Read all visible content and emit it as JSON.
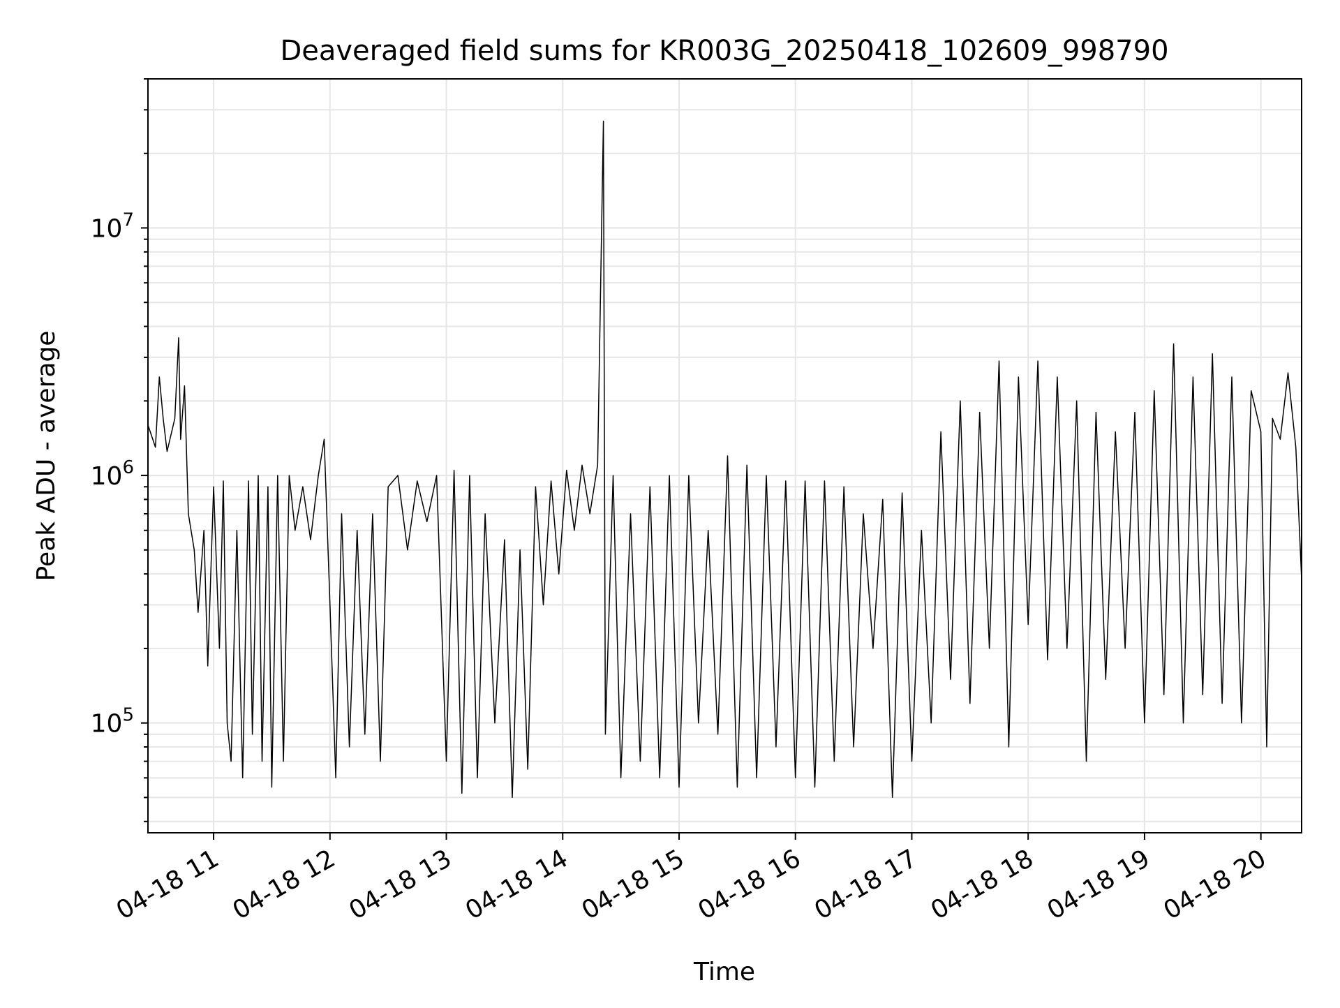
{
  "chart_data": {
    "type": "line",
    "title": "Deaveraged field sums for KR003G_20250418_102609_998790",
    "xlabel": "Time",
    "ylabel": "Peak ADU - average",
    "x_axis": {
      "kind": "time",
      "range": [
        "2025-04-18T10:26:09",
        "2025-04-18T20:21:00"
      ],
      "ticks": [
        "04-18 11",
        "04-18 12",
        "04-18 13",
        "04-18 14",
        "04-18 15",
        "04-18 16",
        "04-18 17",
        "04-18 18",
        "04-18 19",
        "04-18 20"
      ],
      "tick_rotation_deg": 30
    },
    "y_axis": {
      "scale": "log",
      "range": [
        36000,
        40000000
      ],
      "major_ticks": [
        100000,
        1000000,
        10000000
      ],
      "major_tick_labels": [
        {
          "base": "10",
          "exp": "5"
        },
        {
          "base": "10",
          "exp": "6"
        },
        {
          "base": "10",
          "exp": "7"
        }
      ]
    },
    "grid": true,
    "line_color": "#000000",
    "grid_color": "#e6e6e6",
    "series": [
      {
        "points": [
          [
            "2025-04-18T10:26:09",
            1600000
          ],
          [
            "2025-04-18T10:30",
            1300000
          ],
          [
            "2025-04-18T10:32",
            2500000
          ],
          [
            "2025-04-18T10:34",
            1700000
          ],
          [
            "2025-04-18T10:36",
            1250000
          ],
          [
            "2025-04-18T10:40",
            1700000
          ],
          [
            "2025-04-18T10:42",
            3600000
          ],
          [
            "2025-04-18T10:43",
            1400000
          ],
          [
            "2025-04-18T10:45",
            2300000
          ],
          [
            "2025-04-18T10:47",
            700000
          ],
          [
            "2025-04-18T10:50",
            500000
          ],
          [
            "2025-04-18T10:52",
            280000
          ],
          [
            "2025-04-18T10:55",
            600000
          ],
          [
            "2025-04-18T10:57",
            170000
          ],
          [
            "2025-04-18T11:00",
            900000
          ],
          [
            "2025-04-18T11:03",
            200000
          ],
          [
            "2025-04-18T11:05",
            950000
          ],
          [
            "2025-04-18T11:07",
            100000
          ],
          [
            "2025-04-18T11:09",
            70000
          ],
          [
            "2025-04-18T11:12",
            600000
          ],
          [
            "2025-04-18T11:15",
            60000
          ],
          [
            "2025-04-18T11:18",
            950000
          ],
          [
            "2025-04-18T11:20",
            90000
          ],
          [
            "2025-04-18T11:23",
            1000000
          ],
          [
            "2025-04-18T11:25",
            70000
          ],
          [
            "2025-04-18T11:28",
            900000
          ],
          [
            "2025-04-18T11:30",
            55000
          ],
          [
            "2025-04-18T11:33",
            1000000
          ],
          [
            "2025-04-18T11:36",
            70000
          ],
          [
            "2025-04-18T11:39",
            1000000
          ],
          [
            "2025-04-18T11:42",
            600000
          ],
          [
            "2025-04-18T11:46",
            900000
          ],
          [
            "2025-04-18T11:50",
            550000
          ],
          [
            "2025-04-18T11:54",
            1000000
          ],
          [
            "2025-04-18T11:57",
            1400000
          ],
          [
            "2025-04-18T12:00",
            300000
          ],
          [
            "2025-04-18T12:03",
            60000
          ],
          [
            "2025-04-18T12:06",
            700000
          ],
          [
            "2025-04-18T12:10",
            80000
          ],
          [
            "2025-04-18T12:14",
            600000
          ],
          [
            "2025-04-18T12:18",
            90000
          ],
          [
            "2025-04-18T12:22",
            700000
          ],
          [
            "2025-04-18T12:26",
            70000
          ],
          [
            "2025-04-18T12:30",
            900000
          ],
          [
            "2025-04-18T12:35",
            1000000
          ],
          [
            "2025-04-18T12:40",
            500000
          ],
          [
            "2025-04-18T12:45",
            950000
          ],
          [
            "2025-04-18T12:50",
            650000
          ],
          [
            "2025-04-18T12:55",
            1000000
          ],
          [
            "2025-04-18T13:00",
            70000
          ],
          [
            "2025-04-18T13:04",
            1050000
          ],
          [
            "2025-04-18T13:08",
            52000
          ],
          [
            "2025-04-18T13:12",
            1000000
          ],
          [
            "2025-04-18T13:16",
            60000
          ],
          [
            "2025-04-18T13:20",
            700000
          ],
          [
            "2025-04-18T13:25",
            100000
          ],
          [
            "2025-04-18T13:30",
            550000
          ],
          [
            "2025-04-18T13:34",
            50000
          ],
          [
            "2025-04-18T13:38",
            500000
          ],
          [
            "2025-04-18T13:42",
            65000
          ],
          [
            "2025-04-18T13:46",
            900000
          ],
          [
            "2025-04-18T13:50",
            300000
          ],
          [
            "2025-04-18T13:54",
            950000
          ],
          [
            "2025-04-18T13:58",
            400000
          ],
          [
            "2025-04-18T14:02",
            1050000
          ],
          [
            "2025-04-18T14:06",
            600000
          ],
          [
            "2025-04-18T14:10",
            1100000
          ],
          [
            "2025-04-18T14:14",
            700000
          ],
          [
            "2025-04-18T14:18",
            1100000
          ],
          [
            "2025-04-18T14:21",
            27000000
          ],
          [
            "2025-04-18T14:22",
            90000
          ],
          [
            "2025-04-18T14:26",
            1000000
          ],
          [
            "2025-04-18T14:30",
            60000
          ],
          [
            "2025-04-18T14:35",
            700000
          ],
          [
            "2025-04-18T14:40",
            70000
          ],
          [
            "2025-04-18T14:45",
            900000
          ],
          [
            "2025-04-18T14:50",
            60000
          ],
          [
            "2025-04-18T14:55",
            1000000
          ],
          [
            "2025-04-18T15:00",
            55000
          ],
          [
            "2025-04-18T15:05",
            1000000
          ],
          [
            "2025-04-18T15:10",
            100000
          ],
          [
            "2025-04-18T15:15",
            600000
          ],
          [
            "2025-04-18T15:20",
            90000
          ],
          [
            "2025-04-18T15:25",
            1200000
          ],
          [
            "2025-04-18T15:30",
            55000
          ],
          [
            "2025-04-18T15:35",
            1100000
          ],
          [
            "2025-04-18T15:40",
            60000
          ],
          [
            "2025-04-18T15:45",
            1000000
          ],
          [
            "2025-04-18T15:50",
            80000
          ],
          [
            "2025-04-18T15:55",
            950000
          ],
          [
            "2025-04-18T16:00",
            60000
          ],
          [
            "2025-04-18T16:05",
            950000
          ],
          [
            "2025-04-18T16:10",
            55000
          ],
          [
            "2025-04-18T16:15",
            950000
          ],
          [
            "2025-04-18T16:20",
            70000
          ],
          [
            "2025-04-18T16:25",
            900000
          ],
          [
            "2025-04-18T16:30",
            80000
          ],
          [
            "2025-04-18T16:35",
            700000
          ],
          [
            "2025-04-18T16:40",
            200000
          ],
          [
            "2025-04-18T16:45",
            800000
          ],
          [
            "2025-04-18T16:50",
            50000
          ],
          [
            "2025-04-18T16:55",
            850000
          ],
          [
            "2025-04-18T17:00",
            70000
          ],
          [
            "2025-04-18T17:05",
            600000
          ],
          [
            "2025-04-18T17:10",
            100000
          ],
          [
            "2025-04-18T17:15",
            1500000
          ],
          [
            "2025-04-18T17:20",
            150000
          ],
          [
            "2025-04-18T17:25",
            2000000
          ],
          [
            "2025-04-18T17:30",
            120000
          ],
          [
            "2025-04-18T17:35",
            1800000
          ],
          [
            "2025-04-18T17:40",
            200000
          ],
          [
            "2025-04-18T17:45",
            2900000
          ],
          [
            "2025-04-18T17:50",
            80000
          ],
          [
            "2025-04-18T17:55",
            2500000
          ],
          [
            "2025-04-18T18:00",
            250000
          ],
          [
            "2025-04-18T18:05",
            2900000
          ],
          [
            "2025-04-18T18:10",
            180000
          ],
          [
            "2025-04-18T18:15",
            2500000
          ],
          [
            "2025-04-18T18:20",
            200000
          ],
          [
            "2025-04-18T18:25",
            2000000
          ],
          [
            "2025-04-18T18:30",
            70000
          ],
          [
            "2025-04-18T18:35",
            1800000
          ],
          [
            "2025-04-18T18:40",
            150000
          ],
          [
            "2025-04-18T18:45",
            1500000
          ],
          [
            "2025-04-18T18:50",
            200000
          ],
          [
            "2025-04-18T18:55",
            1800000
          ],
          [
            "2025-04-18T19:00",
            100000
          ],
          [
            "2025-04-18T19:05",
            2200000
          ],
          [
            "2025-04-18T19:10",
            130000
          ],
          [
            "2025-04-18T19:15",
            3400000
          ],
          [
            "2025-04-18T19:20",
            100000
          ],
          [
            "2025-04-18T19:25",
            2500000
          ],
          [
            "2025-04-18T19:30",
            130000
          ],
          [
            "2025-04-18T19:35",
            3100000
          ],
          [
            "2025-04-18T19:40",
            120000
          ],
          [
            "2025-04-18T19:45",
            2500000
          ],
          [
            "2025-04-18T19:50",
            100000
          ],
          [
            "2025-04-18T19:55",
            2200000
          ],
          [
            "2025-04-18T20:00",
            1500000
          ],
          [
            "2025-04-18T20:03",
            80000
          ],
          [
            "2025-04-18T20:06",
            1700000
          ],
          [
            "2025-04-18T20:10",
            1400000
          ],
          [
            "2025-04-18T20:14",
            2600000
          ],
          [
            "2025-04-18T20:18",
            1300000
          ],
          [
            "2025-04-18T20:21",
            380000
          ]
        ]
      }
    ]
  }
}
